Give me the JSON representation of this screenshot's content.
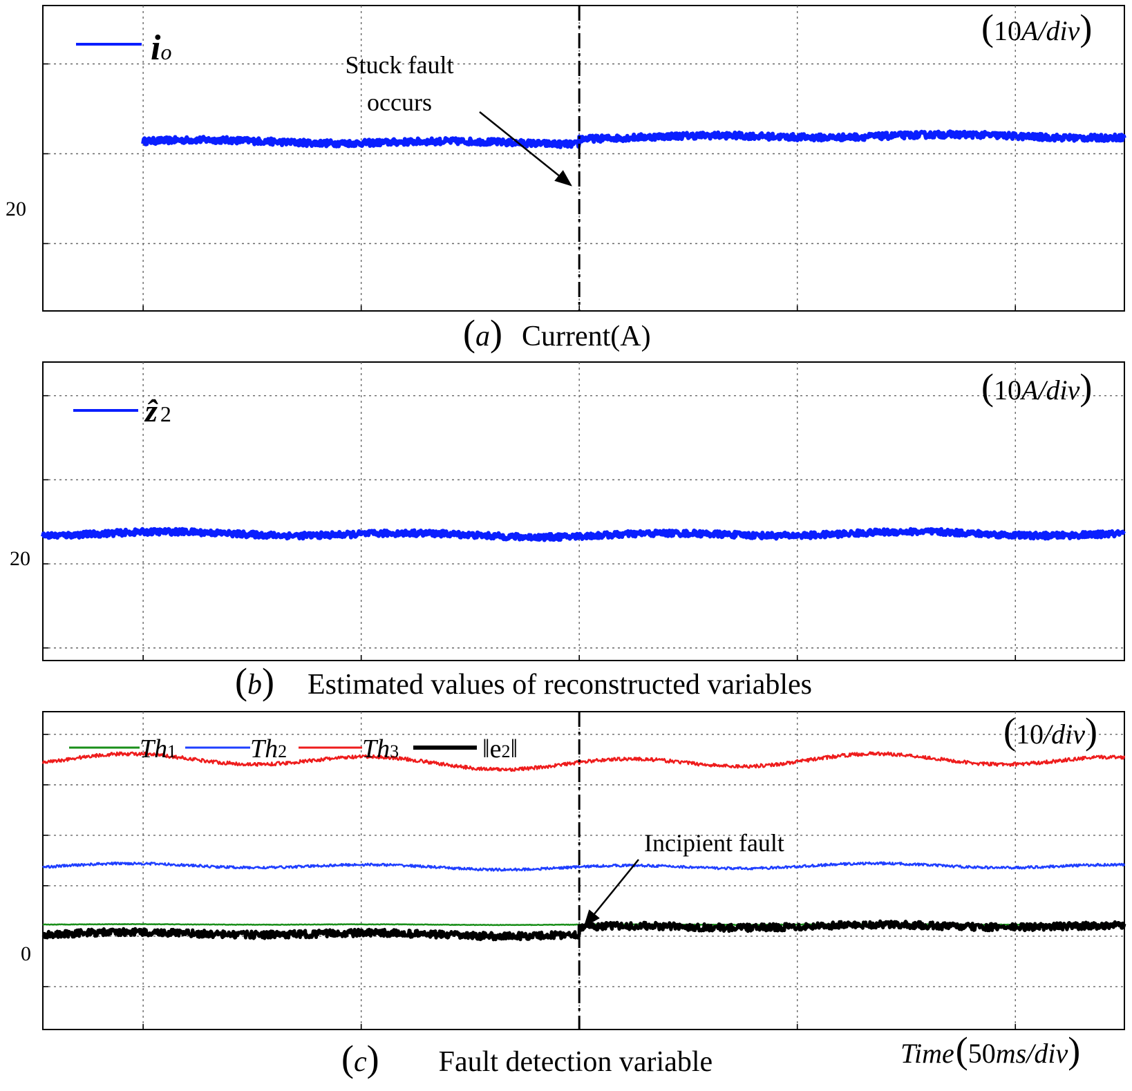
{
  "chart_data": [
    {
      "id": "a",
      "type": "line",
      "caption_letter": "a",
      "caption_text": "Current(A)",
      "scale_label": "(10A/div)",
      "scale_prefix": "10",
      "scale_unit": "A/div",
      "ytick_label": "20",
      "ytick_value": 20,
      "y_per_div": 10,
      "ylim": [
        2.5,
        36.5
      ],
      "x_per_div_ms": 50,
      "xlim_ms": [
        -23,
        225
      ],
      "grid": true,
      "legend": {
        "position": "top-left",
        "entries": [
          {
            "symbol": "i",
            "subscript": "o",
            "color": "#0a1fff"
          }
        ]
      },
      "event": {
        "x_ms": 100,
        "label_lines": [
          "Stuck fault",
          "occurs"
        ]
      },
      "series": [
        {
          "symbol": "i_o",
          "color": "#0a1fff",
          "x": [
            0,
            100,
            100.01,
            225
          ],
          "y": [
            21.3,
            21.3,
            21.9,
            21.9
          ]
        }
      ]
    },
    {
      "id": "b",
      "type": "line",
      "caption_letter": "b",
      "caption_text": "Estimated values of reconstructed variables",
      "scale_label": "(10A/div)",
      "scale_prefix": "10",
      "scale_unit": "A/div",
      "ytick_label": "20",
      "ytick_value": 20,
      "y_per_div": 10,
      "ylim": [
        8.5,
        44
      ],
      "x_per_div_ms": 50,
      "xlim_ms": [
        -23,
        225
      ],
      "grid": true,
      "legend": {
        "position": "top-left",
        "entries": [
          {
            "symbol": "ẑ",
            "subscript": "2",
            "color": "#0a1fff"
          }
        ]
      },
      "series": [
        {
          "symbol": "z_hat_2",
          "color": "#0a1fff",
          "x": [
            -23,
            225
          ],
          "y": [
            23.5,
            23.5
          ]
        }
      ]
    },
    {
      "id": "c",
      "type": "line",
      "caption_letter": "c",
      "caption_text": "Fault detection variable",
      "scale_label": "(10/div)",
      "scale_prefix": "10",
      "scale_unit": "/div",
      "ytick_label": "0",
      "ytick_value": 0,
      "y_per_div": 10,
      "ylim": [
        -18.5,
        44.5
      ],
      "x_per_div_ms": 50,
      "xlim_ms": [
        -23,
        225
      ],
      "xlabel": "Time",
      "xlabel_scale": "(50ms/div)",
      "xlabel_scale_prefix": "50",
      "xlabel_scale_unit": "ms/div",
      "grid": true,
      "legend": {
        "position": "top-left",
        "entries": [
          {
            "symbol": "Th",
            "subscript": "1",
            "color": "#1a8f1a"
          },
          {
            "symbol": "Th",
            "subscript": "2",
            "color": "#1f3fff"
          },
          {
            "symbol": "Th",
            "subscript": "3",
            "color": "#ee1c1c"
          },
          {
            "symbol": "‖e",
            "subscript": "2",
            "suffix": "‖",
            "color": "#000000"
          }
        ]
      },
      "event": {
        "x_ms": 100,
        "label": "Incipient fault"
      },
      "series": [
        {
          "symbol": "Th1",
          "color": "#1a8f1a",
          "x": [
            -23,
            225
          ],
          "y": [
            2.3,
            2.3
          ]
        },
        {
          "symbol": "Th2",
          "color": "#1f3fff",
          "x": [
            -23,
            225
          ],
          "y": [
            13.8,
            13.8
          ]
        },
        {
          "symbol": "Th3",
          "color": "#ee1c1c",
          "x": [
            -23,
            225
          ],
          "y": [
            34.6,
            34.6
          ]
        },
        {
          "symbol": "norm_e2",
          "color": "#000000",
          "x": [
            -23,
            100,
            100.01,
            225
          ],
          "y": [
            0.4,
            0.4,
            1.9,
            1.9
          ]
        }
      ]
    }
  ]
}
